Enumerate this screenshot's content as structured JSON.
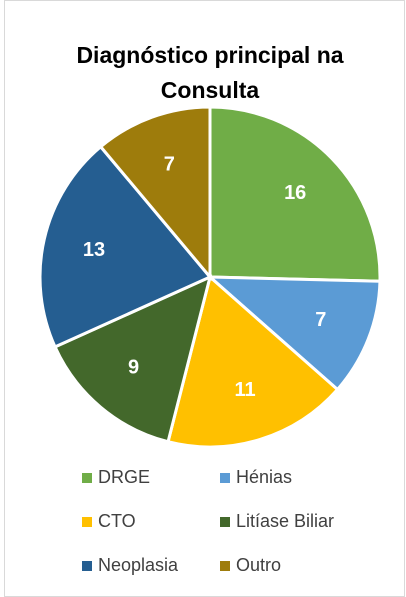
{
  "chart_data": {
    "type": "pie",
    "title": "Diagnóstico principal na Consulta",
    "categories": [
      "DRGE",
      "Hénias",
      "CTO",
      "Litíase Biliar",
      "Neoplasia",
      "Outro"
    ],
    "values": [
      16,
      7,
      11,
      9,
      13,
      7
    ],
    "colors": [
      "#70ad47",
      "#5b9bd5",
      "#ffc000",
      "#43682b",
      "#255e91",
      "#9e7c0c"
    ],
    "legend": "bottom"
  }
}
